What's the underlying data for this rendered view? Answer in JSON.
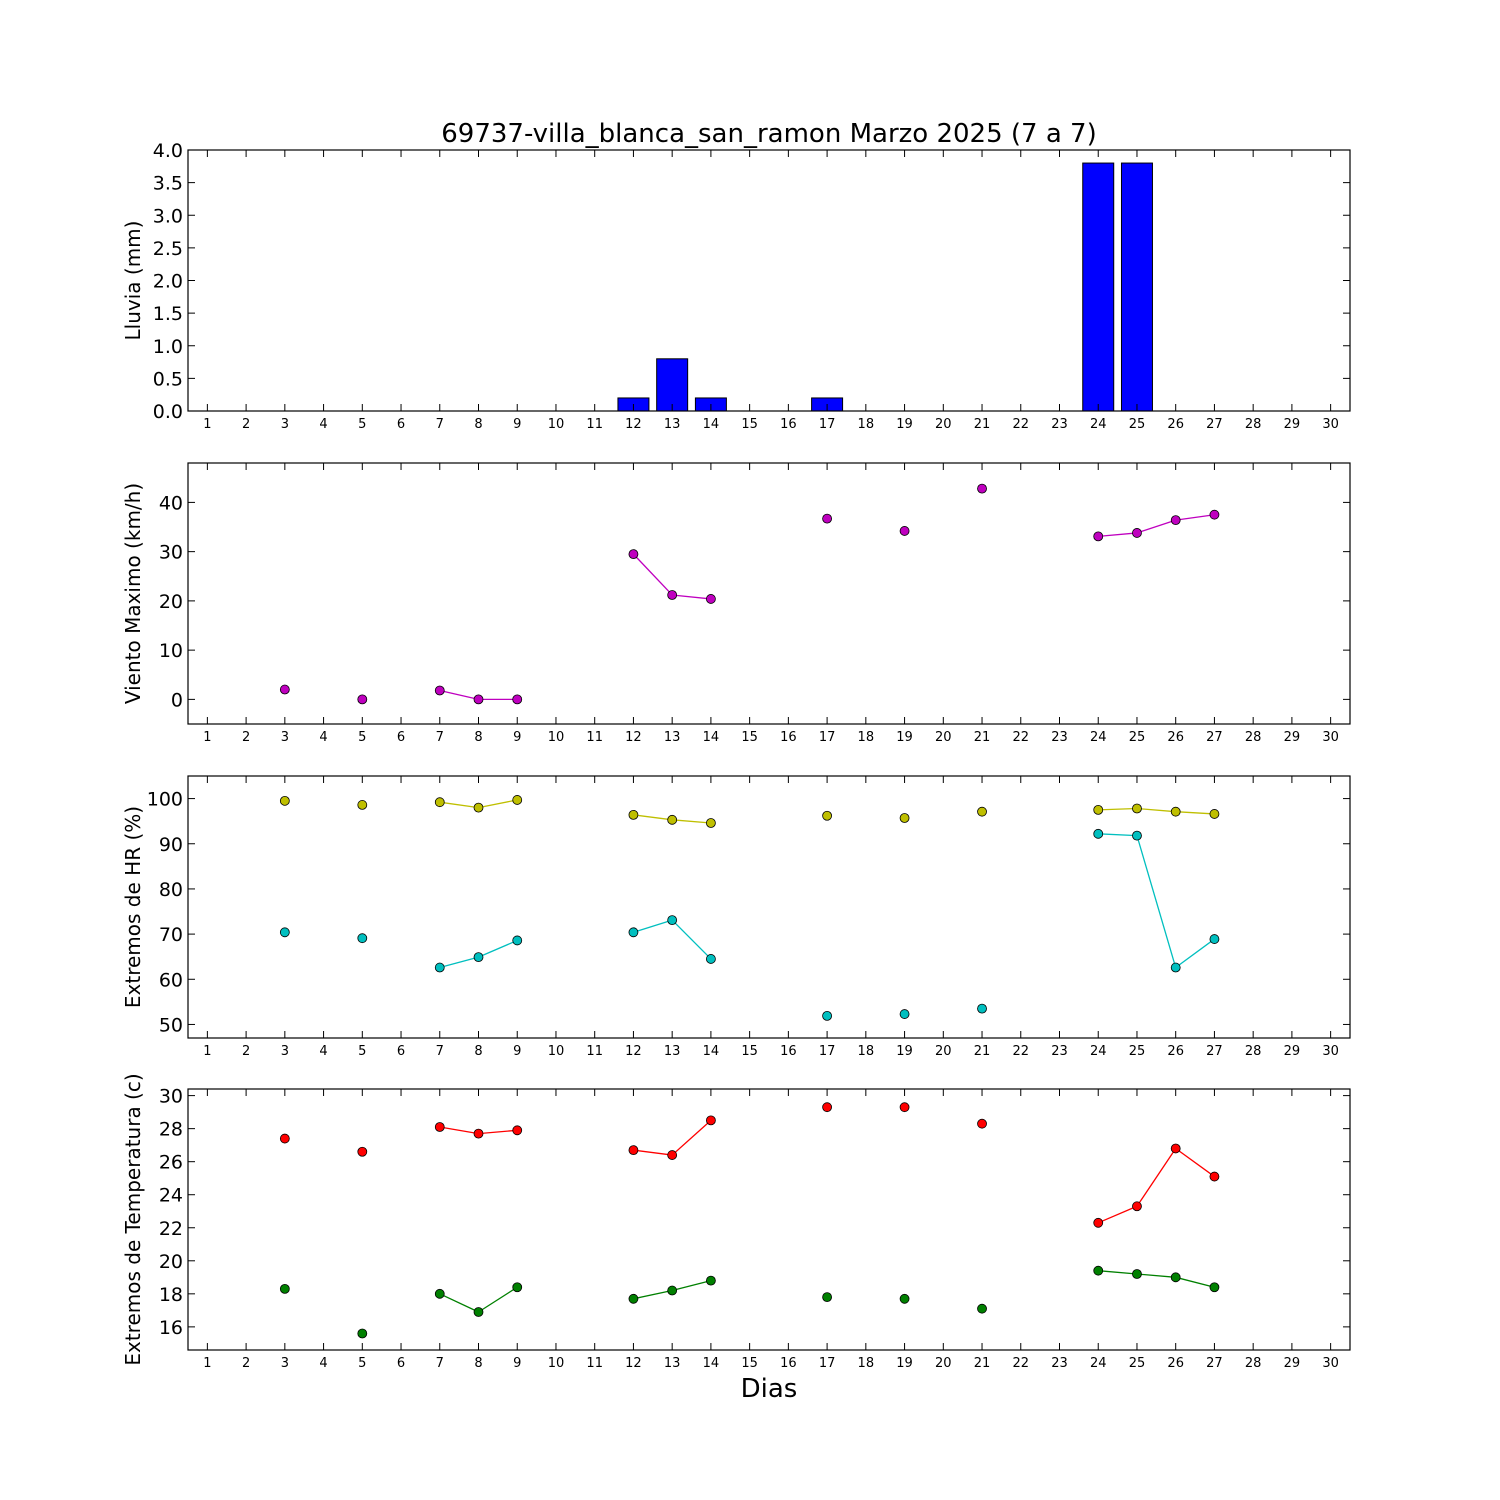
{
  "figure": {
    "title": "69737-villa_blanca_san_ramon Marzo 2025  (7 a 7)",
    "xlabel": "Dias"
  },
  "chart_data": [
    {
      "id": "lluvia",
      "type": "bar",
      "ylabel": "Lluvia (mm)",
      "ylim": [
        0,
        4.0
      ],
      "yticks": [
        "0.0",
        "0.5",
        "1.0",
        "1.5",
        "2.0",
        "2.5",
        "3.0",
        "3.5",
        "4.0"
      ],
      "xlim": [
        0.5,
        30.5
      ],
      "xticks": [
        1,
        2,
        3,
        4,
        5,
        6,
        7,
        8,
        9,
        10,
        11,
        12,
        13,
        14,
        15,
        16,
        17,
        18,
        19,
        20,
        21,
        22,
        23,
        24,
        25,
        26,
        27,
        28,
        29,
        30
      ],
      "grid": false,
      "series": [
        {
          "color": "#0000ff",
          "x": [
            3,
            5,
            7,
            8,
            9,
            12,
            13,
            14,
            17,
            19,
            21,
            24,
            25,
            26,
            27
          ],
          "values": [
            0,
            0,
            0,
            0,
            0,
            0.2,
            0.8,
            0.2,
            0.2,
            0,
            0,
            3.8,
            3.8,
            0,
            0
          ]
        }
      ]
    },
    {
      "id": "viento",
      "type": "line",
      "ylabel": "Viento Maximo (km/h)",
      "ylim": [
        -5,
        48
      ],
      "yticks": [
        "0",
        "10",
        "20",
        "30",
        "40"
      ],
      "xlim": [
        0.5,
        30.5
      ],
      "xticks": [
        1,
        2,
        3,
        4,
        5,
        6,
        7,
        8,
        9,
        10,
        11,
        12,
        13,
        14,
        15,
        16,
        17,
        18,
        19,
        20,
        21,
        22,
        23,
        24,
        25,
        26,
        27,
        28,
        29,
        30
      ],
      "grid": false,
      "series": [
        {
          "color": "#bf00bf",
          "x": [
            1,
            2,
            3,
            4,
            5,
            6,
            7,
            8,
            9,
            10,
            11,
            12,
            13,
            14,
            15,
            16,
            17,
            18,
            19,
            20,
            21,
            22,
            23,
            24,
            25,
            26,
            27,
            28,
            29,
            30
          ],
          "values": [
            null,
            null,
            2.0,
            null,
            0.0,
            null,
            1.8,
            0.0,
            0.0,
            null,
            null,
            29.5,
            21.2,
            20.4,
            null,
            null,
            36.7,
            null,
            34.2,
            null,
            42.8,
            null,
            null,
            33.1,
            33.8,
            36.4,
            37.5,
            null,
            null,
            null
          ]
        }
      ]
    },
    {
      "id": "hr",
      "type": "line",
      "ylabel": "Extremos de HR (%)",
      "ylim": [
        47,
        105
      ],
      "yticks": [
        "50",
        "60",
        "70",
        "80",
        "90",
        "100"
      ],
      "xlim": [
        0.5,
        30.5
      ],
      "xticks": [
        1,
        2,
        3,
        4,
        5,
        6,
        7,
        8,
        9,
        10,
        11,
        12,
        13,
        14,
        15,
        16,
        17,
        18,
        19,
        20,
        21,
        22,
        23,
        24,
        25,
        26,
        27,
        28,
        29,
        30
      ],
      "grid": false,
      "series": [
        {
          "color": "#bfbf00",
          "x": [
            1,
            2,
            3,
            4,
            5,
            6,
            7,
            8,
            9,
            10,
            11,
            12,
            13,
            14,
            15,
            16,
            17,
            18,
            19,
            20,
            21,
            22,
            23,
            24,
            25,
            26,
            27,
            28,
            29,
            30
          ],
          "values": [
            null,
            null,
            99.5,
            null,
            98.6,
            null,
            99.2,
            98.0,
            99.7,
            null,
            null,
            96.4,
            95.3,
            94.6,
            null,
            null,
            96.2,
            null,
            95.7,
            null,
            97.1,
            null,
            null,
            97.5,
            97.8,
            97.1,
            96.6,
            null,
            null,
            null
          ]
        },
        {
          "color": "#00bfbf",
          "x": [
            1,
            2,
            3,
            4,
            5,
            6,
            7,
            8,
            9,
            10,
            11,
            12,
            13,
            14,
            15,
            16,
            17,
            18,
            19,
            20,
            21,
            22,
            23,
            24,
            25,
            26,
            27,
            28,
            29,
            30
          ],
          "values": [
            null,
            null,
            70.4,
            null,
            69.1,
            null,
            62.6,
            64.9,
            68.6,
            null,
            null,
            70.4,
            73.1,
            64.5,
            null,
            null,
            51.9,
            null,
            52.3,
            null,
            53.5,
            null,
            null,
            92.2,
            91.8,
            62.6,
            68.9,
            null,
            null,
            null
          ]
        }
      ]
    },
    {
      "id": "temperatura",
      "type": "line",
      "ylabel": "Extremos de Temperatura (c)",
      "ylim": [
        14.6,
        30.4
      ],
      "yticks": [
        "16",
        "18",
        "20",
        "22",
        "24",
        "26",
        "28",
        "30"
      ],
      "xlim": [
        0.5,
        30.5
      ],
      "xticks": [
        1,
        2,
        3,
        4,
        5,
        6,
        7,
        8,
        9,
        10,
        11,
        12,
        13,
        14,
        15,
        16,
        17,
        18,
        19,
        20,
        21,
        22,
        23,
        24,
        25,
        26,
        27,
        28,
        29,
        30
      ],
      "grid": false,
      "series": [
        {
          "color": "#ff0000",
          "x": [
            1,
            2,
            3,
            4,
            5,
            6,
            7,
            8,
            9,
            10,
            11,
            12,
            13,
            14,
            15,
            16,
            17,
            18,
            19,
            20,
            21,
            22,
            23,
            24,
            25,
            26,
            27,
            28,
            29,
            30
          ],
          "values": [
            null,
            null,
            27.4,
            null,
            26.6,
            null,
            28.1,
            27.7,
            27.9,
            null,
            null,
            26.7,
            26.4,
            28.5,
            null,
            null,
            29.3,
            null,
            29.3,
            null,
            28.3,
            null,
            null,
            22.3,
            23.3,
            26.8,
            25.1,
            null,
            null,
            null
          ]
        },
        {
          "color": "#008000",
          "x": [
            1,
            2,
            3,
            4,
            5,
            6,
            7,
            8,
            9,
            10,
            11,
            12,
            13,
            14,
            15,
            16,
            17,
            18,
            19,
            20,
            21,
            22,
            23,
            24,
            25,
            26,
            27,
            28,
            29,
            30
          ],
          "values": [
            null,
            null,
            18.3,
            null,
            15.6,
            null,
            18.0,
            16.9,
            18.4,
            null,
            null,
            17.7,
            18.2,
            18.8,
            null,
            null,
            17.8,
            null,
            17.7,
            null,
            17.1,
            null,
            null,
            19.4,
            19.2,
            19.0,
            18.4,
            null,
            null,
            null
          ]
        }
      ]
    }
  ]
}
